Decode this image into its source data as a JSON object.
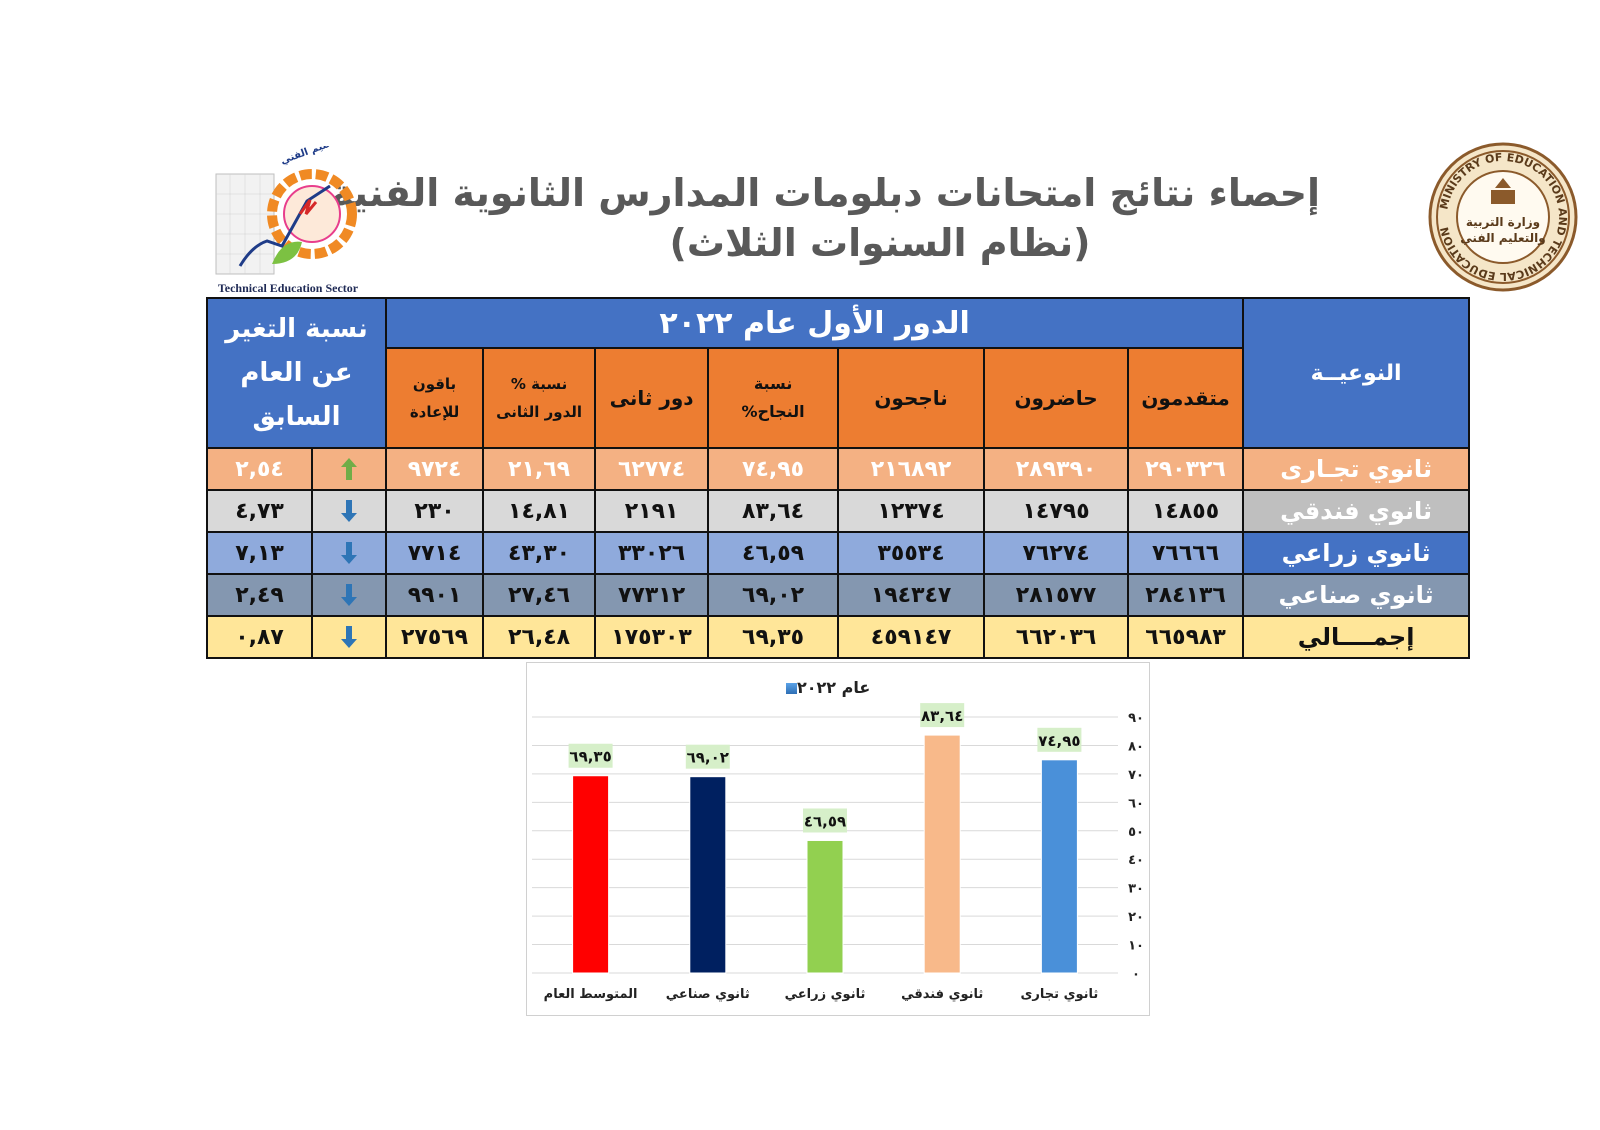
{
  "header": {
    "title_line1": "إحصاء نتائج امتحانات دبلومات المدارس الثانوية الفنية",
    "title_line2": "(نظام السنوات الثلاث)",
    "left_logo_caption": "Technical Education Sector",
    "left_logo_arabic": "قطاع التعليم الفني",
    "right_logo_ring_text": "MINISTRY OF EDUCATION AND TECHNICAL EDUCATION",
    "right_logo_arabic": "وزارة التربية والتعليم والتعليم الفني"
  },
  "table": {
    "type_header": "النوعيــة",
    "round_header": "الدور الأول عام ٢٠٢٢",
    "change_header": "نسبة التغير عن العام السابق",
    "columns": {
      "applicants": "متقدمون",
      "attendees": "حاضرون",
      "passed": "ناجحون",
      "pass_rate_line1": "نسبة",
      "pass_rate_line2": "النجاح%",
      "second_round": "دور ثانى",
      "second_rate_line1": "نسبة %",
      "second_rate_line2": "الدور الثانى",
      "repeat_line1": "باقون",
      "repeat_line2": "للإعادة"
    },
    "rows": [
      {
        "label": "ثانوي تجـارى",
        "applicants": "٢٩٠٣٢٦",
        "attendees": "٢٨٩٣٩٠",
        "passed": "٢١٦٨٩٢",
        "pass_rate": "٧٤,٩٥",
        "second_round": "٦٢٧٧٤",
        "second_rate": "٢١,٦٩",
        "repeat": "٩٧٢٤",
        "direction": "up",
        "change": "٢,٥٤"
      },
      {
        "label": "ثانوي فندقي",
        "applicants": "١٤٨٥٥",
        "attendees": "١٤٧٩٥",
        "passed": "١٢٣٧٤",
        "pass_rate": "٨٣,٦٤",
        "second_round": "٢١٩١",
        "second_rate": "١٤,٨١",
        "repeat": "٢٣٠",
        "direction": "down",
        "change": "٤,٧٣"
      },
      {
        "label": "ثانوي زراعي",
        "applicants": "٧٦٦٦٦",
        "attendees": "٧٦٢٧٤",
        "passed": "٣٥٥٣٤",
        "pass_rate": "٤٦,٥٩",
        "second_round": "٣٣٠٢٦",
        "second_rate": "٤٣,٣٠",
        "repeat": "٧٧١٤",
        "direction": "down",
        "change": "٧,١٣"
      },
      {
        "label": "ثانوي صناعي",
        "applicants": "٢٨٤١٣٦",
        "attendees": "٢٨١٥٧٧",
        "passed": "١٩٤٣٤٧",
        "pass_rate": "٦٩,٠٢",
        "second_round": "٧٧٣١٢",
        "second_rate": "٢٧,٤٦",
        "repeat": "٩٩٠١",
        "direction": "down",
        "change": "٢,٤٩"
      },
      {
        "label": "إجمــــالي",
        "applicants": "٦٦٥٩٨٣",
        "attendees": "٦٦٢٠٣٦",
        "passed": "٤٥٩١٤٧",
        "pass_rate": "٦٩,٣٥",
        "second_round": "١٧٥٣٠٣",
        "second_rate": "٢٦,٤٨",
        "repeat": "٢٧٥٦٩",
        "direction": "down",
        "change": "٠,٨٧"
      }
    ]
  },
  "colors": {
    "header_blue": "#4472c4",
    "header_orange": "#ed7d31",
    "arrow_up": "#70ad47",
    "arrow_down": "#2e75b6"
  },
  "chart_data": {
    "type": "bar",
    "legend": "عام ٢٠٢٢",
    "legend_position": "top",
    "categories": [
      "ثانوي تجارى",
      "ثانوي فندقي",
      "ثانوي زراعي",
      "ثانوي صناعي",
      "المتوسط العام"
    ],
    "values": [
      74.95,
      83.64,
      46.59,
      69.02,
      69.35
    ],
    "value_labels": [
      "٧٤,٩٥",
      "٨٣,٦٤",
      "٤٦,٥٩",
      "٦٩,٠٢",
      "٦٩,٣٥"
    ],
    "bar_colors": [
      "#4a90d9",
      "#f8b98a",
      "#92d050",
      "#002060",
      "#ff0000"
    ],
    "ylim": [
      0,
      90
    ],
    "yticks": [
      0,
      10,
      20,
      30,
      40,
      50,
      60,
      70,
      80,
      90
    ],
    "ytick_labels": [
      "٠",
      "١٠",
      "٢٠",
      "٣٠",
      "٤٠",
      "٥٠",
      "٦٠",
      "٧٠",
      "٨٠",
      "٩٠"
    ],
    "y_axis_side": "right",
    "category_order": "right-to-left",
    "grid": true
  }
}
